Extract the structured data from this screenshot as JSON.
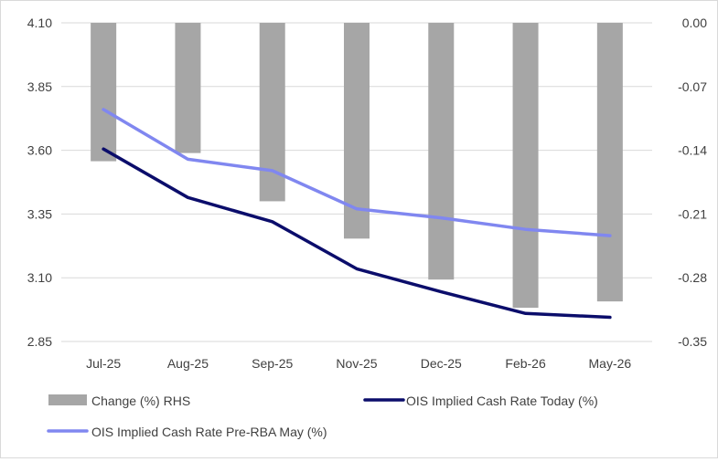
{
  "chart_data": {
    "type": "bar+line",
    "title": "",
    "categories": [
      "Jul-25",
      "Aug-25",
      "Sep-25",
      "Nov-25",
      "Dec-25",
      "Feb-26",
      "May-26"
    ],
    "left_axis": {
      "range": [
        2.85,
        4.1
      ],
      "ticks": [
        "4.10",
        "3.85",
        "3.60",
        "3.35",
        "3.10",
        "2.85"
      ],
      "tick_values": [
        4.1,
        3.85,
        3.6,
        3.35,
        3.1,
        2.85
      ]
    },
    "right_axis": {
      "range": [
        -0.35,
        0.0
      ],
      "ticks": [
        "0.00",
        "-0.07",
        "-0.14",
        "-0.21",
        "-0.28",
        "-0.35"
      ],
      "tick_values": [
        0.0,
        -0.07,
        -0.14,
        -0.21,
        -0.28,
        -0.35
      ]
    },
    "gridlines": true,
    "legend_position": "bottom",
    "series": [
      {
        "name": "Change (%) RHS",
        "kind": "bar",
        "axis": "right",
        "color": "#a6a6a6",
        "values": [
          -0.152,
          -0.143,
          -0.196,
          -0.237,
          -0.282,
          -0.313,
          -0.306
        ]
      },
      {
        "name": "OIS Implied Cash Rate Today (%)",
        "kind": "line",
        "axis": "left",
        "color": "#0b0d6b",
        "values": [
          3.605,
          3.415,
          3.32,
          3.135,
          3.045,
          2.96,
          2.945
        ]
      },
      {
        "name": "OIS Implied Cash Rate Pre-RBA May (%)",
        "kind": "line",
        "axis": "left",
        "color": "#8087f0",
        "values": [
          3.76,
          3.565,
          3.52,
          3.37,
          3.335,
          3.29,
          3.265
        ]
      }
    ]
  }
}
